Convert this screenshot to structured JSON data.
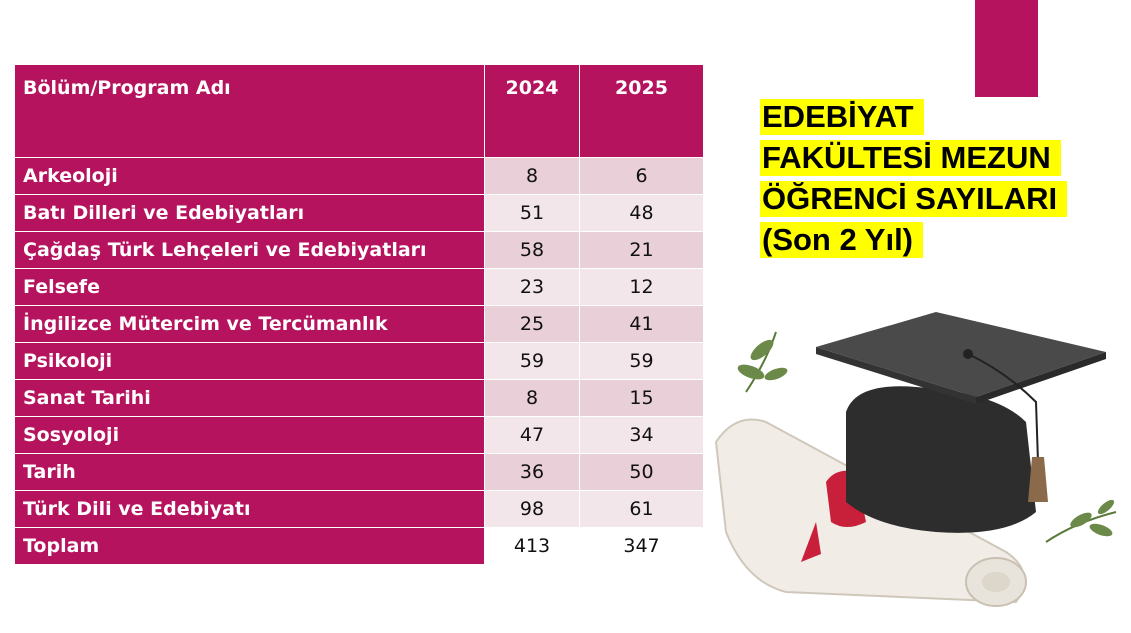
{
  "table": {
    "header": {
      "name": "Bölüm/Program Adı",
      "y1": "2024",
      "y2": "2025"
    },
    "rows": [
      {
        "name": "Arkeoloji",
        "y1": "8",
        "y2": "6"
      },
      {
        "name": "Batı Dilleri ve Edebiyatları",
        "y1": "51",
        "y2": "48"
      },
      {
        "name": "Çağdaş Türk Lehçeleri ve Edebiyatları",
        "y1": "58",
        "y2": "21"
      },
      {
        "name": "Felsefe",
        "y1": "23",
        "y2": "12"
      },
      {
        "name": "İngilizce Mütercim ve Tercümanlık",
        "y1": "25",
        "y2": "41"
      },
      {
        "name": "Psikoloji",
        "y1": "59",
        "y2": "59"
      },
      {
        "name": "Sanat Tarihi",
        "y1": "8",
        "y2": "15"
      },
      {
        "name": "Sosyoloji",
        "y1": "47",
        "y2": "34"
      },
      {
        "name": "Tarih",
        "y1": "36",
        "y2": "50"
      },
      {
        "name": "Türk Dili ve Edebiyatı",
        "y1": "98",
        "y2": "61"
      },
      {
        "name": "Toplam",
        "y1": "413",
        "y2": "347"
      }
    ]
  },
  "title": {
    "line1": "EDEBİYAT",
    "line2": "FAKÜLTESİ MEZUN",
    "line3": "ÖĞRENCİ SAYILARI",
    "line4": "(Son 2 Yıl)"
  },
  "colors": {
    "accent": "#b5135e",
    "highlight": "#ffff00",
    "cell_dark": "#e8cfd8",
    "cell_light": "#f3e6eb"
  },
  "illustration": {
    "icon": "graduation-cap-and-diploma-icon"
  }
}
